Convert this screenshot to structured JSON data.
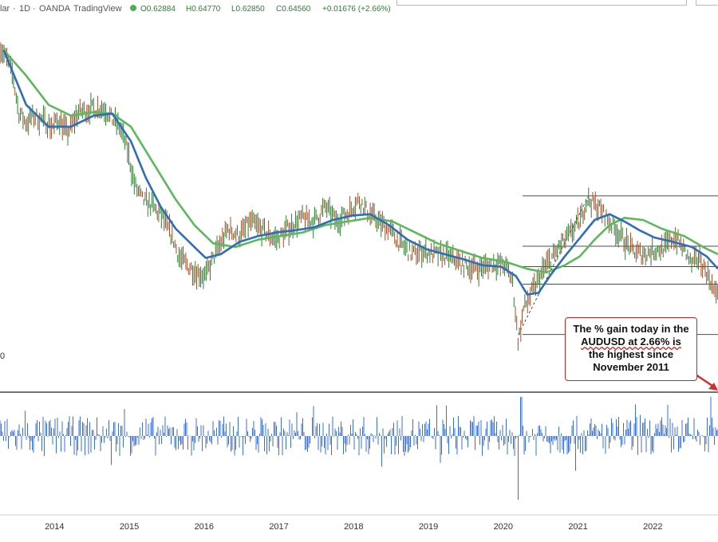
{
  "header": {
    "symbol_fragment": "lar",
    "interval": "1D",
    "broker": "OANDA",
    "platform": "TradingView",
    "open": "O0.62884",
    "high": "H0.64770",
    "low": "L0.62850",
    "close": "C0.64560",
    "change": "+0.01676 (+2.66%)",
    "sep": "·"
  },
  "annotation": {
    "lines": [
      "The % gain today in the",
      "AUDUSD at 2.66%  is",
      "the highest since",
      "November 2011"
    ]
  },
  "pane_label": "0",
  "colors": {
    "price_up": "#2e7d32",
    "price_down": "#a0522d",
    "ma_blue": "#2f6db5",
    "ma_green": "#5cb85c",
    "daily_change": "#3a6fd8",
    "annotation_border": "#c62828",
    "arrow": "#d32f2f"
  },
  "chart_data": [
    {
      "type": "line",
      "title": "",
      "x_ticks": [
        "2014",
        "2015",
        "2016",
        "2017",
        "2018",
        "2019",
        "2020",
        "2021",
        "2022"
      ],
      "series": [
        {
          "name": "",
          "points": [
            [
              2013.25,
              0.9
            ],
            [
              2013.35,
              0.88
            ],
            [
              2013.42,
              0.86
            ],
            [
              2013.5,
              0.81
            ],
            [
              2013.6,
              0.795
            ],
            [
              2013.7,
              0.805
            ],
            [
              2013.85,
              0.797
            ],
            [
              2013.95,
              0.79
            ],
            [
              2014.05,
              0.8
            ],
            [
              2014.15,
              0.78
            ],
            [
              2014.3,
              0.81
            ],
            [
              2014.5,
              0.815
            ],
            [
              2014.65,
              0.815
            ],
            [
              2014.75,
              0.8
            ],
            [
              2014.85,
              0.79
            ],
            [
              2014.95,
              0.76
            ],
            [
              2015.05,
              0.71
            ],
            [
              2015.15,
              0.69
            ],
            [
              2015.3,
              0.68
            ],
            [
              2015.45,
              0.66
            ],
            [
              2015.55,
              0.64
            ],
            [
              2015.65,
              0.61
            ],
            [
              2015.75,
              0.6
            ],
            [
              2015.9,
              0.59
            ],
            [
              2016.0,
              0.585
            ],
            [
              2016.15,
              0.62
            ],
            [
              2016.3,
              0.65
            ],
            [
              2016.45,
              0.64
            ],
            [
              2016.6,
              0.66
            ],
            [
              2016.8,
              0.645
            ],
            [
              2016.95,
              0.635
            ],
            [
              2017.1,
              0.65
            ],
            [
              2017.3,
              0.665
            ],
            [
              2017.45,
              0.66
            ],
            [
              2017.6,
              0.68
            ],
            [
              2017.75,
              0.66
            ],
            [
              2017.9,
              0.672
            ],
            [
              2018.05,
              0.69
            ],
            [
              2018.15,
              0.675
            ],
            [
              2018.3,
              0.66
            ],
            [
              2018.45,
              0.65
            ],
            [
              2018.6,
              0.63
            ],
            [
              2018.75,
              0.615
            ],
            [
              2018.9,
              0.62
            ],
            [
              2019.05,
              0.615
            ],
            [
              2019.25,
              0.612
            ],
            [
              2019.45,
              0.6
            ],
            [
              2019.65,
              0.595
            ],
            [
              2019.85,
              0.602
            ],
            [
              2020.0,
              0.6
            ],
            [
              2020.1,
              0.58
            ],
            [
              2020.18,
              0.495
            ],
            [
              2020.25,
              0.54
            ],
            [
              2020.4,
              0.57
            ],
            [
              2020.55,
              0.6
            ],
            [
              2020.7,
              0.62
            ],
            [
              2020.85,
              0.64
            ],
            [
              2021.0,
              0.66
            ],
            [
              2021.1,
              0.69
            ],
            [
              2021.25,
              0.68
            ],
            [
              2021.4,
              0.66
            ],
            [
              2021.55,
              0.64
            ],
            [
              2021.7,
              0.62
            ],
            [
              2021.85,
              0.615
            ],
            [
              2022.0,
              0.62
            ],
            [
              2022.15,
              0.625
            ],
            [
              2022.27,
              0.64
            ],
            [
              2022.4,
              0.62
            ],
            [
              2022.5,
              0.6
            ],
            [
              2022.6,
              0.61
            ],
            [
              2022.7,
              0.59
            ],
            [
              2022.75,
              0.58
            ],
            [
              2022.8,
              0.56
            ],
            [
              2022.85,
              0.57
            ]
          ]
        },
        {
          "name": "",
          "points": [
            [
              2013.3,
              0.895
            ],
            [
              2013.6,
              0.82
            ],
            [
              2013.9,
              0.79
            ],
            [
              2014.2,
              0.79
            ],
            [
              2014.5,
              0.805
            ],
            [
              2014.75,
              0.808
            ],
            [
              2015.0,
              0.77
            ],
            [
              2015.2,
              0.72
            ],
            [
              2015.4,
              0.68
            ],
            [
              2015.6,
              0.65
            ],
            [
              2015.85,
              0.625
            ],
            [
              2016.0,
              0.61
            ],
            [
              2016.2,
              0.615
            ],
            [
              2016.45,
              0.632
            ],
            [
              2016.7,
              0.64
            ],
            [
              2016.95,
              0.645
            ],
            [
              2017.2,
              0.648
            ],
            [
              2017.45,
              0.652
            ],
            [
              2017.7,
              0.662
            ],
            [
              2017.95,
              0.668
            ],
            [
              2018.2,
              0.67
            ],
            [
              2018.45,
              0.655
            ],
            [
              2018.7,
              0.635
            ],
            [
              2018.95,
              0.622
            ],
            [
              2019.2,
              0.615
            ],
            [
              2019.45,
              0.608
            ],
            [
              2019.7,
              0.6
            ],
            [
              2019.95,
              0.598
            ],
            [
              2020.15,
              0.585
            ],
            [
              2020.3,
              0.56
            ],
            [
              2020.45,
              0.562
            ],
            [
              2020.6,
              0.585
            ],
            [
              2020.8,
              0.612
            ],
            [
              2021.0,
              0.637
            ],
            [
              2021.2,
              0.662
            ],
            [
              2021.4,
              0.67
            ],
            [
              2021.6,
              0.66
            ],
            [
              2021.8,
              0.648
            ],
            [
              2022.0,
              0.638
            ],
            [
              2022.25,
              0.632
            ],
            [
              2022.5,
              0.625
            ],
            [
              2022.7,
              0.612
            ],
            [
              2022.85,
              0.595
            ]
          ]
        },
        {
          "name": "",
          "points": [
            [
              2013.3,
              0.895
            ],
            [
              2013.6,
              0.86
            ],
            [
              2013.9,
              0.82
            ],
            [
              2014.2,
              0.805
            ],
            [
              2014.5,
              0.81
            ],
            [
              2014.75,
              0.808
            ],
            [
              2015.0,
              0.79
            ],
            [
              2015.3,
              0.74
            ],
            [
              2015.6,
              0.69
            ],
            [
              2015.85,
              0.655
            ],
            [
              2016.1,
              0.63
            ],
            [
              2016.4,
              0.625
            ],
            [
              2016.7,
              0.635
            ],
            [
              2017.0,
              0.64
            ],
            [
              2017.3,
              0.645
            ],
            [
              2017.6,
              0.655
            ],
            [
              2017.9,
              0.66
            ],
            [
              2018.2,
              0.665
            ],
            [
              2018.5,
              0.66
            ],
            [
              2018.8,
              0.645
            ],
            [
              2019.1,
              0.63
            ],
            [
              2019.4,
              0.62
            ],
            [
              2019.7,
              0.61
            ],
            [
              2020.0,
              0.605
            ],
            [
              2020.3,
              0.595
            ],
            [
              2020.55,
              0.59
            ],
            [
              2020.8,
              0.6
            ],
            [
              2021.0,
              0.612
            ],
            [
              2021.2,
              0.635
            ],
            [
              2021.4,
              0.655
            ],
            [
              2021.6,
              0.665
            ],
            [
              2021.85,
              0.662
            ],
            [
              2022.1,
              0.65
            ],
            [
              2022.4,
              0.64
            ],
            [
              2022.65,
              0.625
            ],
            [
              2022.85,
              0.615
            ]
          ]
        }
      ],
      "horizontal_levels": [
        0.695,
        0.626,
        0.598,
        0.574,
        0.505
      ],
      "diagonal_line": [
        [
          2020.18,
          0.505
        ],
        [
          2021.12,
          0.695
        ]
      ]
    },
    {
      "type": "bar",
      "series_name": "",
      "x_ticks": [
        "2014",
        "2015",
        "2016",
        "2017",
        "2018",
        "2019",
        "2020",
        "2021",
        "2022"
      ],
      "notable_values": [
        [
          2020.18,
          -0.035
        ],
        [
          2020.22,
          0.025
        ],
        [
          2022.75,
          0.0266
        ]
      ]
    }
  ]
}
